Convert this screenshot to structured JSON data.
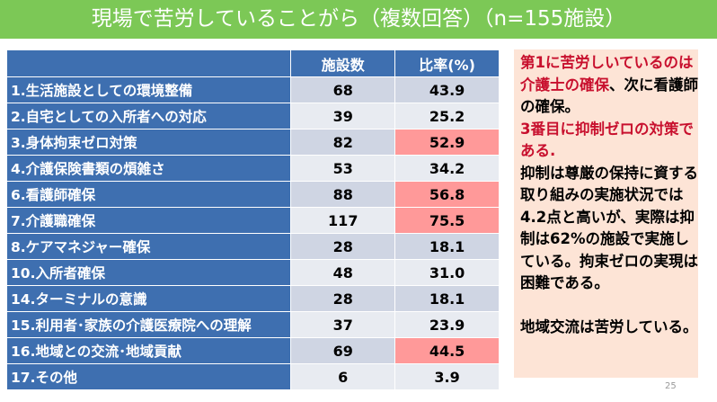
{
  "title": "現場で苦労していることがら（複数回答）（n=155施設）",
  "table": {
    "headers": [
      "",
      "施設数",
      "比率(%)"
    ],
    "rows": [
      {
        "label": "1.生活施設としての環境整備",
        "count": "68",
        "ratio": "43.9",
        "highlight": false
      },
      {
        "label": "2.自宅としての入所者への対応",
        "count": "39",
        "ratio": "25.2",
        "highlight": false
      },
      {
        "label": "3.身体拘束ゼロ対策",
        "count": "82",
        "ratio": "52.9",
        "highlight": true
      },
      {
        "label": "4.介護保険書類の煩雑さ",
        "count": "53",
        "ratio": "34.2",
        "highlight": false
      },
      {
        "label": "6.看護師確保",
        "count": "88",
        "ratio": "56.8",
        "highlight": true
      },
      {
        "label": "7.介護職確保",
        "count": "117",
        "ratio": "75.5",
        "highlight": true
      },
      {
        "label": "8.ケアマネジャー確保",
        "count": "28",
        "ratio": "18.1",
        "highlight": false
      },
      {
        "label": "10.入所者確保",
        "count": "48",
        "ratio": "31.0",
        "highlight": false
      },
      {
        "label": "14.ターミナルの意識",
        "count": "28",
        "ratio": "18.1",
        "highlight": false
      },
      {
        "label": "15.利用者･家族の介護医療院への理解",
        "count": "37",
        "ratio": "23.9",
        "highlight": false
      },
      {
        "label": "16.地域との交流･地域貢献",
        "count": "69",
        "ratio": "44.5",
        "highlight": true
      },
      {
        "label": "17.その他",
        "count": "6",
        "ratio": "3.9",
        "highlight": false
      }
    ]
  },
  "note": {
    "red1": "第1に苦労しいているのは介護士の確保",
    "black1": "、次に看護師の確保。",
    "red2": "3番目に抑制ゼロの対策である.",
    "black2": "抑制は尊厳の保持に資する取り組みの実施状況では4.2点と高いが、実際は抑制は62%の施設で実施している。拘束ゼロの実現は困難である。",
    "black3": "地域交流は苦労している。"
  },
  "page_number": "25",
  "colors": {
    "header": "#7cc856",
    "table_label": "#3e6fb0",
    "highlight": "#ff9999",
    "note_bg": "#fde4d6",
    "red": "#c8102e"
  }
}
